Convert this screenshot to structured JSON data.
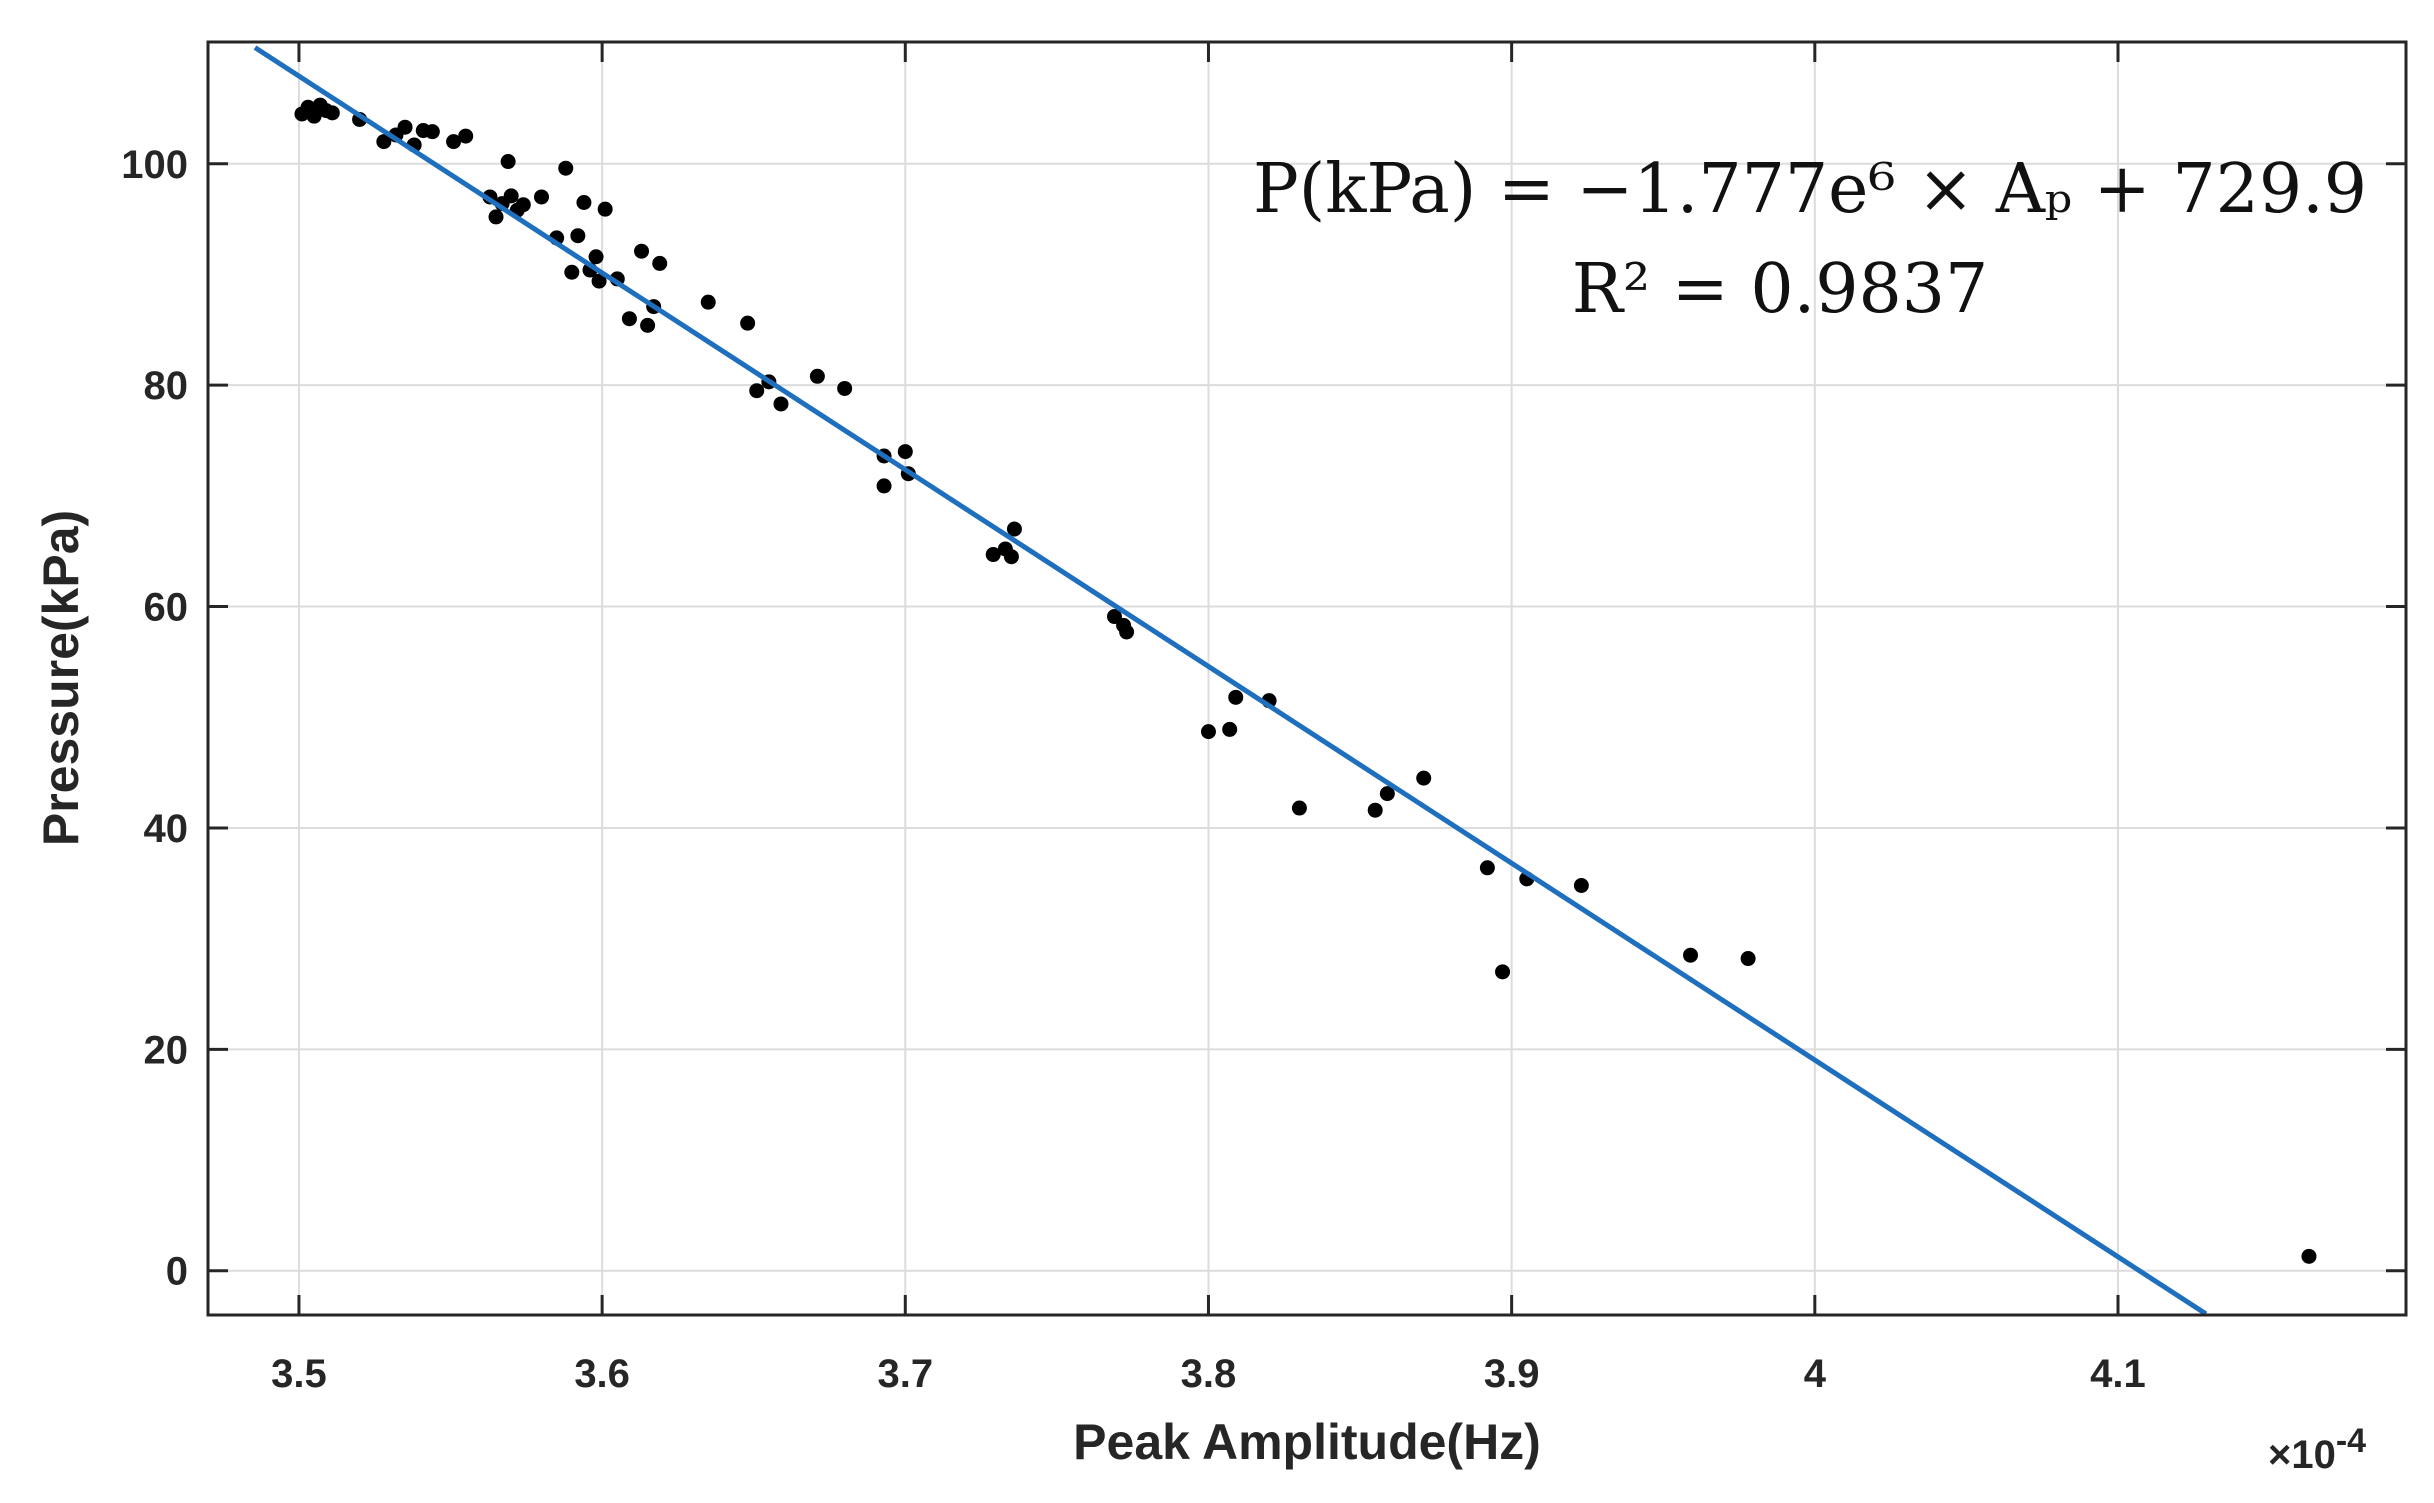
{
  "chart_data": {
    "type": "scatter",
    "title": "",
    "xlabel": "Peak Amplitude(Hz)",
    "ylabel": "Pressure(kPa)",
    "x_exponent_label": "×10",
    "x_exponent_power": "-4",
    "xlim": [
      3.47,
      4.195
    ],
    "ylim": [
      -4,
      111
    ],
    "xticks": [
      3.5,
      3.6,
      3.7,
      3.8,
      3.9,
      4.0,
      4.1
    ],
    "xtick_labels": [
      "3.5",
      "3.6",
      "3.7",
      "3.8",
      "3.9",
      "4",
      "4.1"
    ],
    "yticks": [
      0,
      20,
      40,
      60,
      80,
      100
    ],
    "ytick_labels": [
      "0",
      "20",
      "40",
      "60",
      "80",
      "100"
    ],
    "grid": true,
    "marker_color": "#000000",
    "fit_color": "#1f6fbf",
    "series": [
      {
        "kind": "points",
        "points": [
          [
            3.501,
            104.5
          ],
          [
            3.503,
            105.1
          ],
          [
            3.505,
            104.3
          ],
          [
            3.507,
            105.3
          ],
          [
            3.509,
            104.8
          ],
          [
            3.511,
            104.6
          ],
          [
            3.52,
            104.0
          ],
          [
            3.528,
            102.0
          ],
          [
            3.532,
            102.6
          ],
          [
            3.535,
            103.3
          ],
          [
            3.538,
            101.7
          ],
          [
            3.541,
            103.0
          ],
          [
            3.544,
            102.9
          ],
          [
            3.551,
            102.0
          ],
          [
            3.555,
            102.5
          ],
          [
            3.563,
            97.0
          ],
          [
            3.565,
            95.2
          ],
          [
            3.567,
            96.4
          ],
          [
            3.569,
            100.2
          ],
          [
            3.57,
            97.1
          ],
          [
            3.572,
            95.8
          ],
          [
            3.574,
            96.3
          ],
          [
            3.58,
            97.0
          ],
          [
            3.585,
            93.3
          ],
          [
            3.588,
            99.6
          ],
          [
            3.59,
            90.2
          ],
          [
            3.592,
            93.5
          ],
          [
            3.594,
            96.5
          ],
          [
            3.596,
            90.4
          ],
          [
            3.598,
            91.6
          ],
          [
            3.599,
            89.4
          ],
          [
            3.601,
            95.9
          ],
          [
            3.605,
            89.6
          ],
          [
            3.609,
            86.0
          ],
          [
            3.613,
            92.1
          ],
          [
            3.615,
            85.4
          ],
          [
            3.619,
            91.0
          ],
          [
            3.617,
            87.1
          ],
          [
            3.635,
            87.5
          ],
          [
            3.648,
            85.6
          ],
          [
            3.651,
            79.5
          ],
          [
            3.655,
            80.3
          ],
          [
            3.659,
            78.3
          ],
          [
            3.671,
            80.8
          ],
          [
            3.68,
            79.7
          ],
          [
            3.693,
            73.6
          ],
          [
            3.693,
            70.9
          ],
          [
            3.7,
            74.0
          ],
          [
            3.701,
            72.0
          ],
          [
            3.729,
            64.7
          ],
          [
            3.733,
            65.2
          ],
          [
            3.735,
            64.5
          ],
          [
            3.736,
            67.0
          ],
          [
            3.769,
            59.1
          ],
          [
            3.772,
            58.3
          ],
          [
            3.773,
            57.7
          ],
          [
            3.8,
            48.7
          ],
          [
            3.807,
            48.9
          ],
          [
            3.809,
            51.8
          ],
          [
            3.82,
            51.5
          ],
          [
            3.83,
            41.8
          ],
          [
            3.855,
            41.6
          ],
          [
            3.859,
            43.1
          ],
          [
            3.871,
            44.5
          ],
          [
            3.892,
            36.4
          ],
          [
            3.897,
            27.0
          ],
          [
            3.905,
            35.4
          ],
          [
            3.923,
            34.8
          ],
          [
            3.959,
            28.5
          ],
          [
            3.978,
            28.2
          ],
          [
            4.163,
            1.3
          ]
        ]
      },
      {
        "kind": "fit-line",
        "x": [
          3.4855,
          4.129
        ],
        "y": [
          110.5,
          -3.9
        ]
      }
    ],
    "annotations": [
      "P(kPa) = −1.777e⁶ × Aₚ + 729.9",
      "R² = 0.9837"
    ]
  }
}
